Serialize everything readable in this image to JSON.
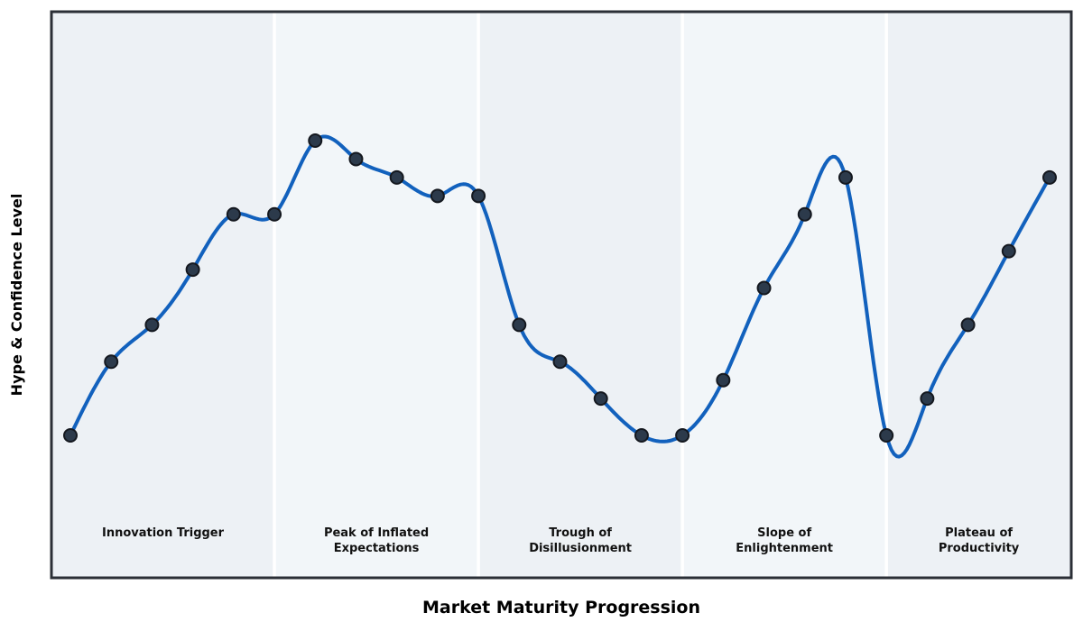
{
  "chart_data": {
    "type": "line",
    "title": "",
    "xlabel": "Market Maturity Progression",
    "ylabel": "Hype & Confidence Level",
    "x": [
      0,
      1,
      2,
      3,
      4,
      5,
      6,
      7,
      8,
      9,
      10,
      11,
      12,
      13,
      14,
      15,
      16,
      17,
      18,
      19,
      20,
      21,
      22,
      23,
      24
    ],
    "series": [
      {
        "name": "Hype & Confidence Level",
        "values": [
          10,
          30,
          40,
          55,
          70,
          70,
          90,
          85,
          80,
          75,
          75,
          40,
          30,
          20,
          10,
          10,
          25,
          50,
          70,
          80,
          10,
          20,
          40,
          60,
          80
        ]
      }
    ],
    "xlim": [
      -0.47,
      24.53
    ],
    "ylim": [
      -29,
      125
    ],
    "grid": false,
    "legend_position": "none",
    "marker": "circle",
    "line_style": "smooth-spline",
    "phases": [
      {
        "lines": [
          "Innovation Trigger"
        ],
        "span": [
          0,
          5
        ]
      },
      {
        "lines": [
          "Peak of Inflated",
          "Expectations"
        ],
        "span": [
          5,
          10
        ]
      },
      {
        "lines": [
          "Trough of",
          "Disillusionment"
        ],
        "span": [
          10,
          15
        ]
      },
      {
        "lines": [
          "Slope of",
          "Enlightenment"
        ],
        "span": [
          15,
          20
        ]
      },
      {
        "lines": [
          "Plateau of",
          "Productivity"
        ],
        "span": [
          20,
          24
        ]
      }
    ],
    "colors": {
      "line": "#1261bd",
      "marker_fill": "#2c3a4b",
      "marker_edge": "#14181f",
      "band_a": "#edf1f5",
      "band_b": "#f2f6f9",
      "divider": "#ffffff",
      "frame": "#2b2f36",
      "label_text": "#111111",
      "page_background": "#ffffff"
    }
  }
}
